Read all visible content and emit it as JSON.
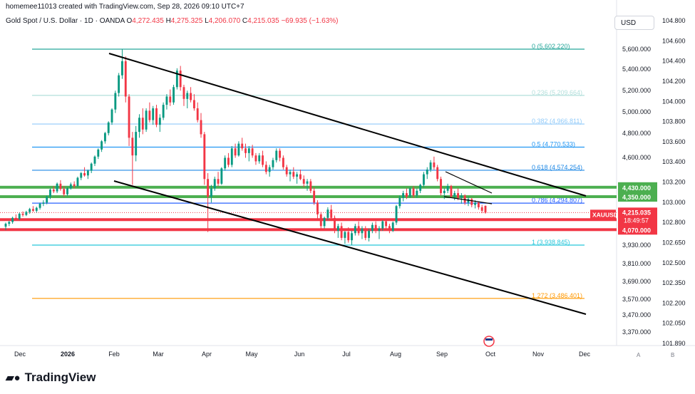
{
  "header": {
    "created_by": "homemee11013 created with TradingView.com, Sep 28, 2026 09:10 UTC+7",
    "symbol_desc": "Gold Spot / U.S. Dollar · 1D · OANDA",
    "o_label": "O",
    "o_value": "4,272.435",
    "h_label": "H",
    "h_value": "4,275.325",
    "l_label": "L",
    "l_value": "4,206.070",
    "c_label": "C",
    "c_value": "4,215.035",
    "change": "−69.935 (−1.63%)"
  },
  "currency_button": "USD",
  "branding": "TradingView",
  "colors": {
    "up": "#089981",
    "down": "#f23645",
    "green_zone": "#4caf50",
    "red_zone": "#f23645",
    "trendline": "#000000",
    "fib_0": "#26a69a",
    "fib_0236": "#b2dfdb",
    "fib_0382": "#90caf9",
    "fib_05": "#2196f3",
    "fib_0618": "#1e88e5",
    "fib_0786": "#2962ff",
    "fib_1": "#26c6da",
    "fib_1272": "#ff9800"
  },
  "chart_data": {
    "type": "candlestick",
    "title": "Gold Spot / U.S. Dollar · 1D · OANDA",
    "x_ticks": [
      "Dec",
      "2026",
      "Feb",
      "Mar",
      "Apr",
      "May",
      "Jun",
      "Jul",
      "Aug",
      "Sep",
      "Oct",
      "Nov",
      "Dec"
    ],
    "y_ticks_right": [
      "5,600.000",
      "5,400.000",
      "5,200.000",
      "5,000.000",
      "4,800.000",
      "4,600.000",
      "3,930.000",
      "3,810.000",
      "3,690.000",
      "3,570.000",
      "3,470.000",
      "3,370.000"
    ],
    "y_ticks_far_right": [
      "104.800",
      "104.600",
      "104.400",
      "104.200",
      "104.000",
      "103.800",
      "103.600",
      "103.400",
      "103.200",
      "103.000",
      "102.800",
      "102.650",
      "102.500",
      "102.350",
      "102.200",
      "102.050",
      "101.890"
    ],
    "fib_levels": [
      {
        "label": "0 (5,602.220)",
        "value": 5602.22
      },
      {
        "label": "0.236 (5,209.664)",
        "value": 5209.664
      },
      {
        "label": "0.382 (4,966.811)",
        "value": 4966.811
      },
      {
        "label": "0.5 (4,770.533)",
        "value": 4770.533
      },
      {
        "label": "0.618 (4,574.254)",
        "value": 4574.254
      },
      {
        "label": "0.786 (4,294.807)",
        "value": 4294.807
      },
      {
        "label": "1 (3,938.845)",
        "value": 3938.845
      },
      {
        "label": "1.272 (3,486.401)",
        "value": 3486.401
      }
    ],
    "zones": [
      {
        "label": "4,430.000",
        "value": 4430,
        "color": "green"
      },
      {
        "label": "4,350.000",
        "value": 4350,
        "color": "green"
      },
      {
        "label": "4,155.000",
        "value": 4155,
        "color": "red"
      },
      {
        "label": "4,070.000",
        "value": 4070,
        "color": "red"
      }
    ],
    "current_price": {
      "symbol": "XAUUSD",
      "price": "4,215.035",
      "countdown": "18:49:57"
    },
    "candles": [
      [
        4095,
        4130,
        4065,
        4120
      ],
      [
        4120,
        4145,
        4100,
        4135
      ],
      [
        4135,
        4180,
        4120,
        4170
      ],
      [
        4170,
        4200,
        4150,
        4160
      ],
      [
        4160,
        4215,
        4150,
        4205
      ],
      [
        4205,
        4225,
        4180,
        4195
      ],
      [
        4195,
        4230,
        4185,
        4220
      ],
      [
        4220,
        4255,
        4205,
        4245
      ],
      [
        4245,
        4270,
        4220,
        4230
      ],
      [
        4230,
        4265,
        4215,
        4255
      ],
      [
        4255,
        4300,
        4240,
        4290
      ],
      [
        4290,
        4320,
        4270,
        4300
      ],
      [
        4300,
        4360,
        4285,
        4350
      ],
      [
        4350,
        4420,
        4330,
        4410
      ],
      [
        4410,
        4440,
        4380,
        4395
      ],
      [
        4395,
        4470,
        4380,
        4460
      ],
      [
        4460,
        4490,
        4400,
        4415
      ],
      [
        4415,
        4440,
        4350,
        4370
      ],
      [
        4370,
        4430,
        4355,
        4420
      ],
      [
        4420,
        4470,
        4410,
        4455
      ],
      [
        4455,
        4480,
        4420,
        4440
      ],
      [
        4440,
        4520,
        4430,
        4510
      ],
      [
        4510,
        4560,
        4490,
        4550
      ],
      [
        4550,
        4600,
        4520,
        4530
      ],
      [
        4530,
        4580,
        4500,
        4570
      ],
      [
        4570,
        4640,
        4550,
        4630
      ],
      [
        4630,
        4700,
        4610,
        4690
      ],
      [
        4690,
        4760,
        4670,
        4750
      ],
      [
        4750,
        4830,
        4730,
        4820
      ],
      [
        4820,
        4900,
        4800,
        4890
      ],
      [
        4890,
        4990,
        4870,
        4980
      ],
      [
        4980,
        5100,
        4960,
        5090
      ],
      [
        5090,
        5250,
        5060,
        5230
      ],
      [
        5230,
        5400,
        5200,
        5380
      ],
      [
        5380,
        5602,
        5350,
        5500
      ],
      [
        5500,
        5540,
        5150,
        5200
      ],
      [
        5200,
        5220,
        4780,
        4850
      ],
      [
        4850,
        4900,
        4450,
        4700
      ],
      [
        4700,
        4950,
        4650,
        4900
      ],
      [
        4900,
        5050,
        4850,
        5020
      ],
      [
        5020,
        5100,
        4880,
        4920
      ],
      [
        4920,
        5100,
        4900,
        5080
      ],
      [
        5080,
        5150,
        4980,
        5000
      ],
      [
        5000,
        5120,
        4960,
        5100
      ],
      [
        5100,
        5130,
        4940,
        4960
      ],
      [
        4960,
        5050,
        4900,
        5020
      ],
      [
        5020,
        5150,
        5000,
        5130
      ],
      [
        5130,
        5220,
        5090,
        5200
      ],
      [
        5200,
        5260,
        5120,
        5150
      ],
      [
        5150,
        5300,
        5130,
        5280
      ],
      [
        5280,
        5440,
        5260,
        5420
      ],
      [
        5420,
        5460,
        5250,
        5280
      ],
      [
        5280,
        5300,
        5120,
        5180
      ],
      [
        5180,
        5250,
        5100,
        5230
      ],
      [
        5230,
        5280,
        5150,
        5170
      ],
      [
        5170,
        5220,
        5080,
        5100
      ],
      [
        5100,
        5150,
        4980,
        5000
      ],
      [
        5000,
        5060,
        4850,
        4880
      ],
      [
        4880,
        4900,
        4450,
        4500
      ],
      [
        4500,
        4550,
        4050,
        4350
      ],
      [
        4350,
        4450,
        4300,
        4420
      ],
      [
        4420,
        4520,
        4400,
        4500
      ],
      [
        4500,
        4560,
        4440,
        4460
      ],
      [
        4460,
        4600,
        4450,
        4590
      ],
      [
        4590,
        4700,
        4570,
        4680
      ],
      [
        4680,
        4720,
        4600,
        4620
      ],
      [
        4620,
        4780,
        4600,
        4760
      ],
      [
        4760,
        4800,
        4680,
        4700
      ],
      [
        4700,
        4820,
        4690,
        4800
      ],
      [
        4800,
        4850,
        4740,
        4760
      ],
      [
        4760,
        4800,
        4680,
        4720
      ],
      [
        4720,
        4780,
        4650,
        4760
      ],
      [
        4760,
        4790,
        4680,
        4700
      ],
      [
        4700,
        4720,
        4620,
        4650
      ],
      [
        4650,
        4720,
        4630,
        4700
      ],
      [
        4700,
        4740,
        4600,
        4620
      ],
      [
        4620,
        4650,
        4540,
        4560
      ],
      [
        4560,
        4620,
        4520,
        4600
      ],
      [
        4600,
        4680,
        4580,
        4660
      ],
      [
        4660,
        4760,
        4640,
        4740
      ],
      [
        4740,
        4760,
        4650,
        4680
      ],
      [
        4680,
        4700,
        4580,
        4600
      ],
      [
        4600,
        4620,
        4520,
        4540
      ],
      [
        4540,
        4580,
        4480,
        4560
      ],
      [
        4560,
        4600,
        4500,
        4520
      ],
      [
        4520,
        4560,
        4460,
        4540
      ],
      [
        4540,
        4580,
        4490,
        4500
      ],
      [
        4500,
        4530,
        4430,
        4460
      ],
      [
        4460,
        4500,
        4400,
        4480
      ],
      [
        4480,
        4500,
        4380,
        4400
      ],
      [
        4400,
        4430,
        4280,
        4300
      ],
      [
        4300,
        4320,
        4150,
        4200
      ],
      [
        4200,
        4220,
        4060,
        4100
      ],
      [
        4100,
        4180,
        4080,
        4170
      ],
      [
        4170,
        4260,
        4150,
        4240
      ],
      [
        4240,
        4280,
        4150,
        4170
      ],
      [
        4170,
        4190,
        4040,
        4060
      ],
      [
        4060,
        4120,
        4000,
        4100
      ],
      [
        4100,
        4130,
        3980,
        4000
      ],
      [
        4000,
        4060,
        3950,
        4050
      ],
      [
        4050,
        4090,
        3960,
        3980
      ],
      [
        3980,
        4060,
        3940,
        4040
      ],
      [
        4040,
        4120,
        4020,
        4100
      ],
      [
        4100,
        4140,
        4020,
        4040
      ],
      [
        4040,
        4100,
        3990,
        4080
      ],
      [
        4080,
        4100,
        3980,
        4000
      ],
      [
        4000,
        4080,
        3970,
        4060
      ],
      [
        4060,
        4130,
        4040,
        4110
      ],
      [
        4110,
        4140,
        4040,
        4060
      ],
      [
        4060,
        4100,
        3990,
        4080
      ],
      [
        4080,
        4150,
        4060,
        4140
      ],
      [
        4140,
        4160,
        4080,
        4100
      ],
      [
        4100,
        4120,
        4040,
        4060
      ],
      [
        4060,
        4140,
        4050,
        4130
      ],
      [
        4130,
        4280,
        4110,
        4270
      ],
      [
        4270,
        4360,
        4250,
        4340
      ],
      [
        4340,
        4400,
        4310,
        4380
      ],
      [
        4380,
        4420,
        4330,
        4350
      ],
      [
        4350,
        4430,
        4340,
        4420
      ],
      [
        4420,
        4440,
        4340,
        4360
      ],
      [
        4360,
        4420,
        4340,
        4400
      ],
      [
        4400,
        4460,
        4380,
        4450
      ],
      [
        4450,
        4560,
        4430,
        4540
      ],
      [
        4540,
        4600,
        4500,
        4580
      ],
      [
        4580,
        4660,
        4560,
        4640
      ],
      [
        4640,
        4690,
        4580,
        4600
      ],
      [
        4600,
        4620,
        4480,
        4500
      ],
      [
        4500,
        4520,
        4360,
        4380
      ],
      [
        4380,
        4420,
        4330,
        4400
      ],
      [
        4400,
        4460,
        4380,
        4440
      ],
      [
        4440,
        4450,
        4340,
        4350
      ],
      [
        4350,
        4400,
        4320,
        4380
      ],
      [
        4380,
        4420,
        4320,
        4340
      ],
      [
        4340,
        4380,
        4290,
        4360
      ],
      [
        4360,
        4370,
        4280,
        4300
      ],
      [
        4300,
        4350,
        4270,
        4330
      ],
      [
        4330,
        4340,
        4260,
        4280
      ],
      [
        4280,
        4320,
        4250,
        4300
      ],
      [
        4300,
        4310,
        4240,
        4260
      ],
      [
        4260,
        4280,
        4210,
        4230
      ],
      [
        4272,
        4275,
        4206,
        4215
      ]
    ]
  }
}
